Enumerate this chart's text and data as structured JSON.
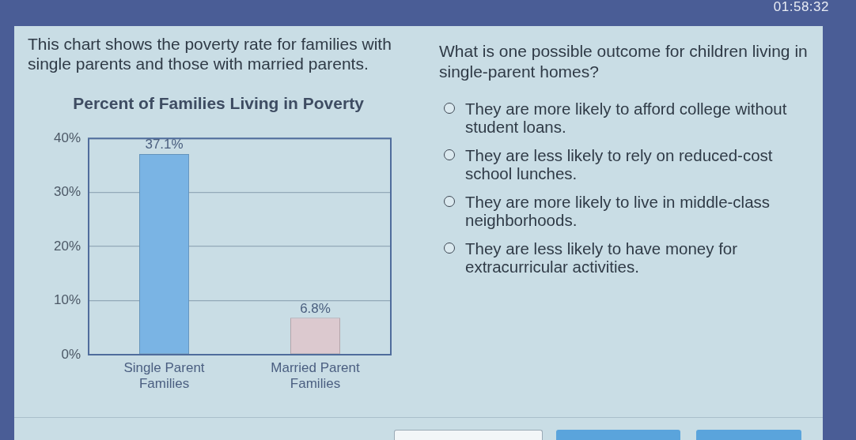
{
  "chart_data": [
    {
      "type": "bar",
      "title": "Percent of Families Living in Poverty",
      "annotations": [
        "This chart shows the poverty rate for families with single parents and those with married parents."
      ],
      "categories": [
        "Single Parent Families",
        "Married Parent Families"
      ],
      "values": [
        37.1,
        6.8
      ],
      "colors": [
        "#7ab4e4",
        "#dcc9cf"
      ],
      "value_labels": [
        "37.1%",
        "6.8%"
      ],
      "ylim": [
        0,
        40
      ],
      "yticks": [
        {
          "value": 0,
          "label": "0%"
        },
        {
          "value": 10,
          "label": "10%"
        },
        {
          "value": 20,
          "label": "20%"
        },
        {
          "value": 30,
          "label": "30%"
        },
        {
          "value": 40,
          "label": "40%"
        }
      ],
      "grid": "y"
    },
    {
      "type": "other",
      "title": "What is one possible outcome for children living in single-parent homes?",
      "annotations": [
        "They are more likely to afford college without student loans.",
        "They are less likely to rely on reduced-cost school lunches.",
        "They are more likely to live in middle-class neighborhoods.",
        "They are less likely to have money for extracurricular activities."
      ]
    },
    {
      "type": "other",
      "title": "01:58:32"
    }
  ]
}
